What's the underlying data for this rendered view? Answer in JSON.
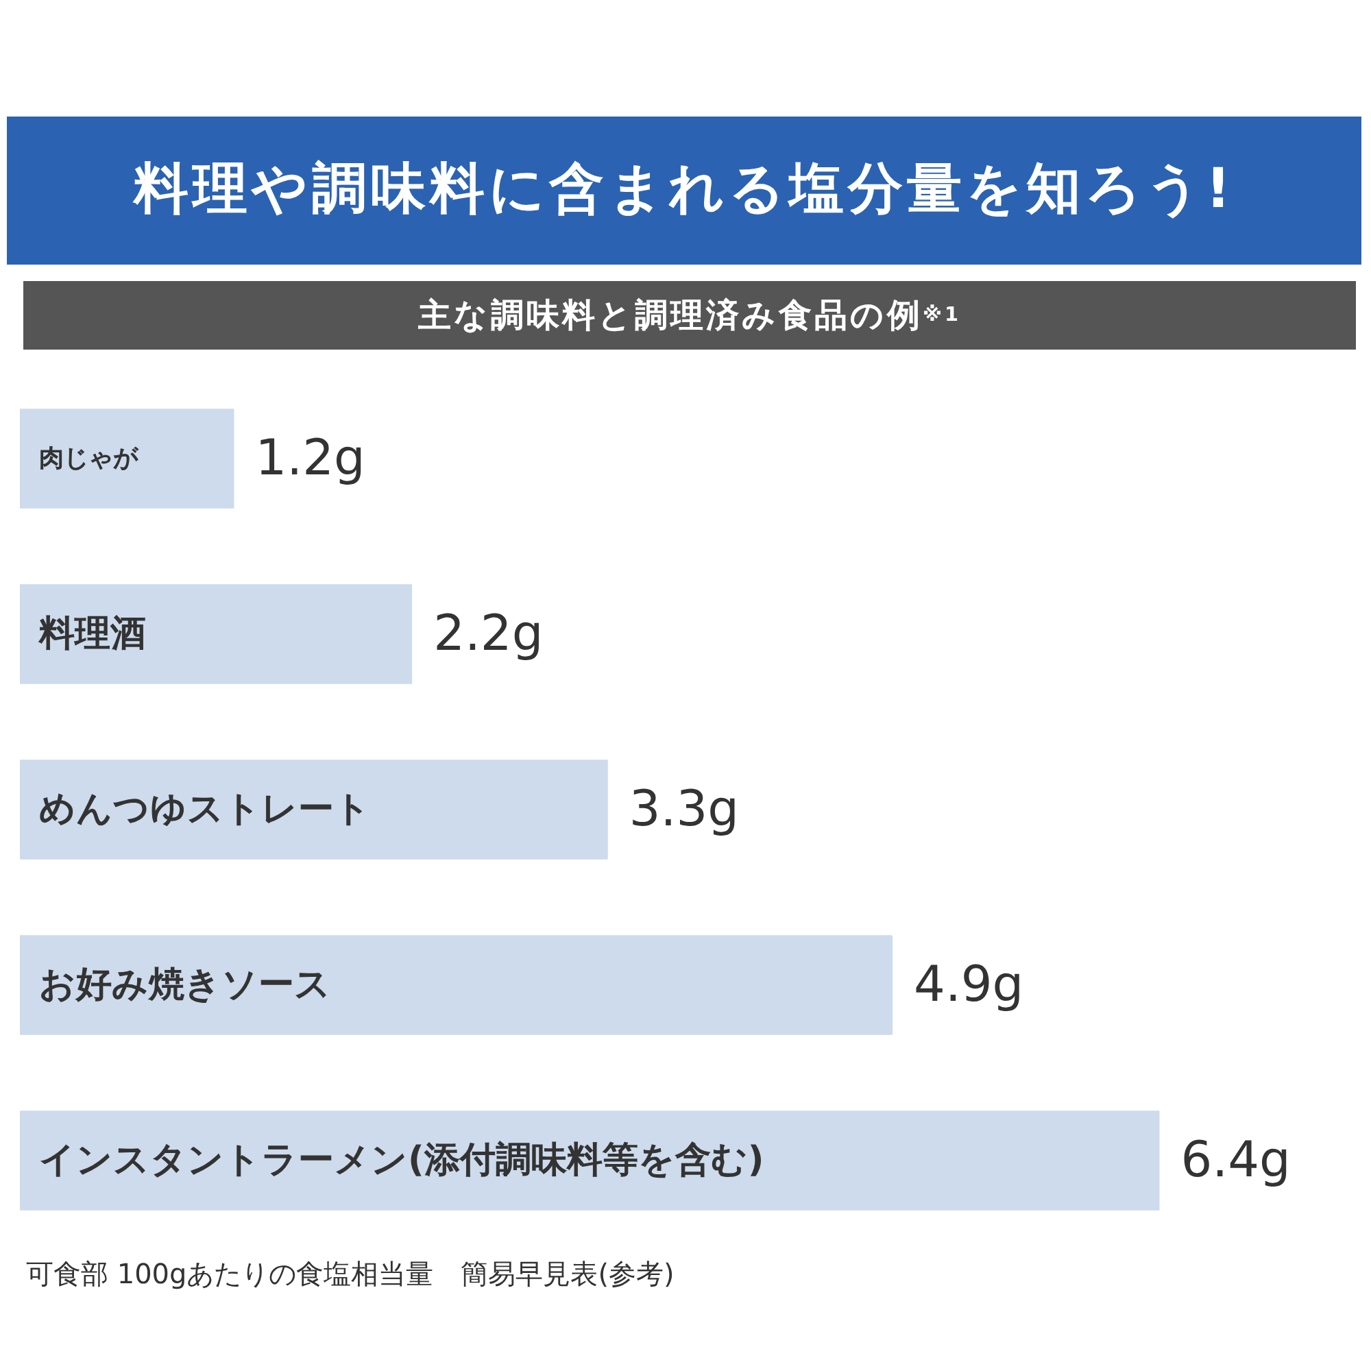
{
  "chart_data": {
    "type": "bar",
    "orientation": "horizontal",
    "title": "料理や調味料に含まれる塩分量を知ろう!",
    "subtitle": "主な調味料と調理済み食品の例$^{※1}$",
    "categories": [
      "肉じゃが",
      "料理酒",
      "めんつゆストレート",
      "お好み焼きソース",
      "インスタントラーメン(添付調味料等を含む)"
    ],
    "values": [
      1.2,
      2.2,
      3.3,
      4.9,
      6.4
    ],
    "value_labels": [
      "1.2g",
      "2.2g",
      "3.3g",
      "4.9g",
      "6.4g"
    ],
    "color": "#cddbec",
    "tick_labels": false,
    "annotations": [
      "可食部 100gあたりの食塩相当量　簡易早見表(参考)"
    ]
  }
}
